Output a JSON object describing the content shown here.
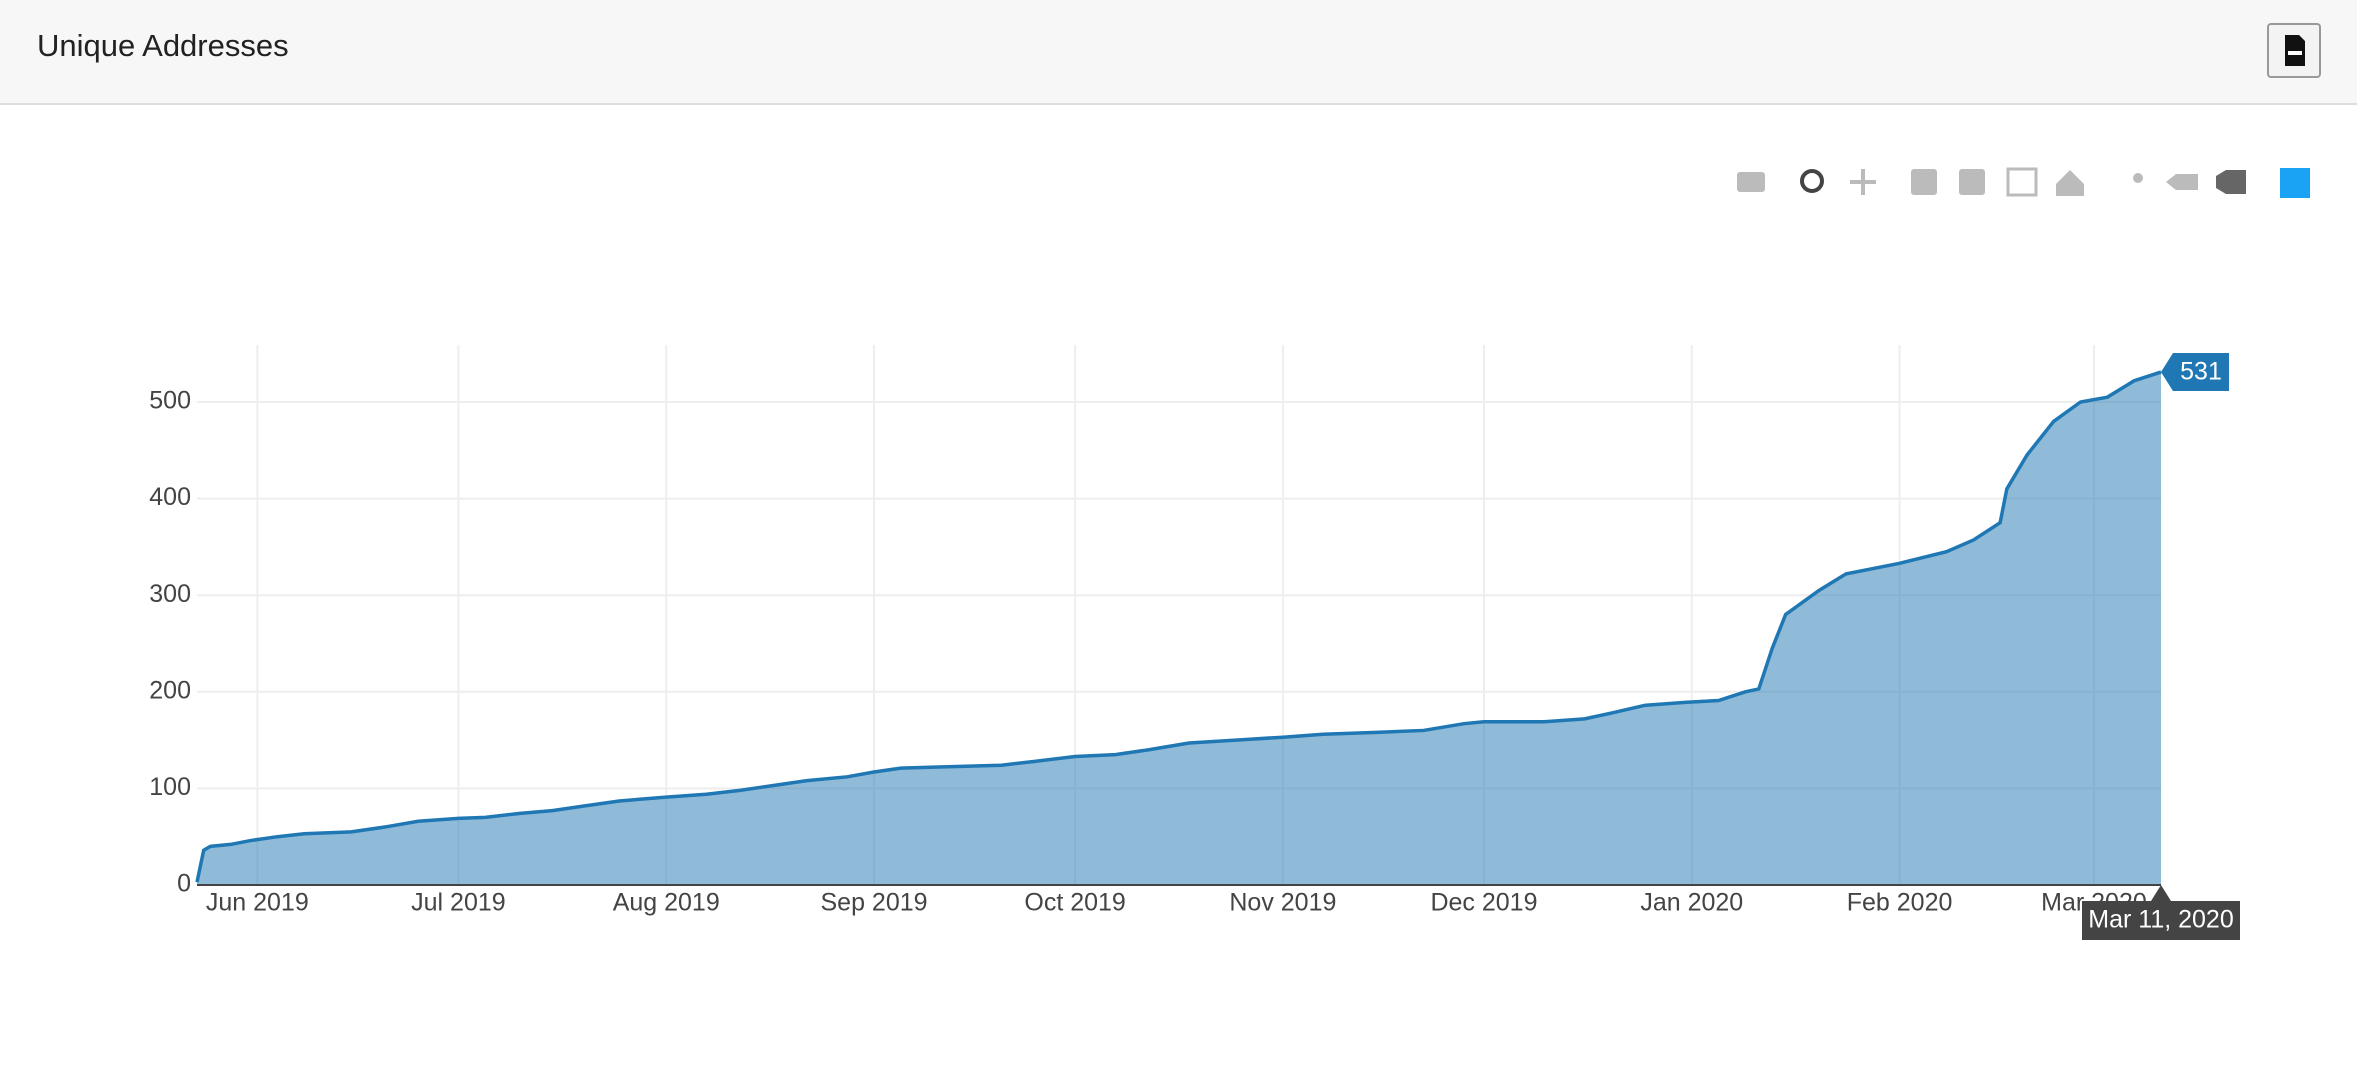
{
  "header": {
    "title": "Unique Addresses"
  },
  "chart_data": {
    "type": "area",
    "color": "#1f77b4",
    "grid": true,
    "x": [
      "2019-05-23",
      "2019-05-24",
      "2019-05-25",
      "2019-05-28",
      "2019-05-31",
      "2019-06-04",
      "2019-06-08",
      "2019-06-15",
      "2019-06-20",
      "2019-06-25",
      "2019-07-01",
      "2019-07-05",
      "2019-07-10",
      "2019-07-15",
      "2019-07-20",
      "2019-07-25",
      "2019-08-01",
      "2019-08-07",
      "2019-08-12",
      "2019-08-17",
      "2019-08-22",
      "2019-08-28",
      "2019-09-01",
      "2019-09-05",
      "2019-09-10",
      "2019-09-20",
      "2019-09-25",
      "2019-10-01",
      "2019-10-07",
      "2019-10-12",
      "2019-10-18",
      "2019-10-25",
      "2019-11-01",
      "2019-11-07",
      "2019-11-15",
      "2019-11-22",
      "2019-11-28",
      "2019-12-01",
      "2019-12-10",
      "2019-12-16",
      "2019-12-20",
      "2019-12-25",
      "2019-12-31",
      "2020-01-05",
      "2020-01-09",
      "2020-01-11",
      "2020-01-13",
      "2020-01-15",
      "2020-01-20",
      "2020-01-24",
      "2020-02-01",
      "2020-02-08",
      "2020-02-12",
      "2020-02-16",
      "2020-02-17",
      "2020-02-20",
      "2020-02-24",
      "2020-02-28",
      "2020-03-03",
      "2020-03-07",
      "2020-03-11"
    ],
    "values": [
      3,
      36,
      40,
      42,
      46,
      50,
      53,
      55,
      60,
      66,
      69,
      70,
      74,
      77,
      82,
      87,
      91,
      94,
      98,
      103,
      108,
      112,
      117,
      121,
      122,
      124,
      128,
      133,
      135,
      140,
      147,
      150,
      153,
      156,
      158,
      160,
      167,
      169,
      169,
      172,
      178,
      186,
      189,
      191,
      200,
      203,
      245,
      280,
      305,
      322,
      333,
      345,
      357,
      375,
      410,
      445,
      480,
      500,
      505,
      522,
      531
    ],
    "xlim": [
      "2019-05-23",
      "2020-03-11"
    ],
    "xticks": [
      {
        "value": "2019-06-01",
        "label": "Jun 2019"
      },
      {
        "value": "2019-07-01",
        "label": "Jul 2019"
      },
      {
        "value": "2019-08-01",
        "label": "Aug 2019"
      },
      {
        "value": "2019-09-01",
        "label": "Sep 2019"
      },
      {
        "value": "2019-10-01",
        "label": "Oct 2019"
      },
      {
        "value": "2019-11-01",
        "label": "Nov 2019"
      },
      {
        "value": "2019-12-01",
        "label": "Dec 2019"
      },
      {
        "value": "2020-01-01",
        "label": "Jan 2020"
      },
      {
        "value": "2020-02-01",
        "label": "Feb 2020"
      },
      {
        "value": "2020-03-01",
        "label": "Mar 2020"
      }
    ],
    "ylim": [
      0,
      559
    ],
    "yticks": [
      0,
      100,
      200,
      300,
      400,
      500
    ],
    "hover": {
      "y_label": "531",
      "x_label": "Mar 11, 2020"
    }
  }
}
